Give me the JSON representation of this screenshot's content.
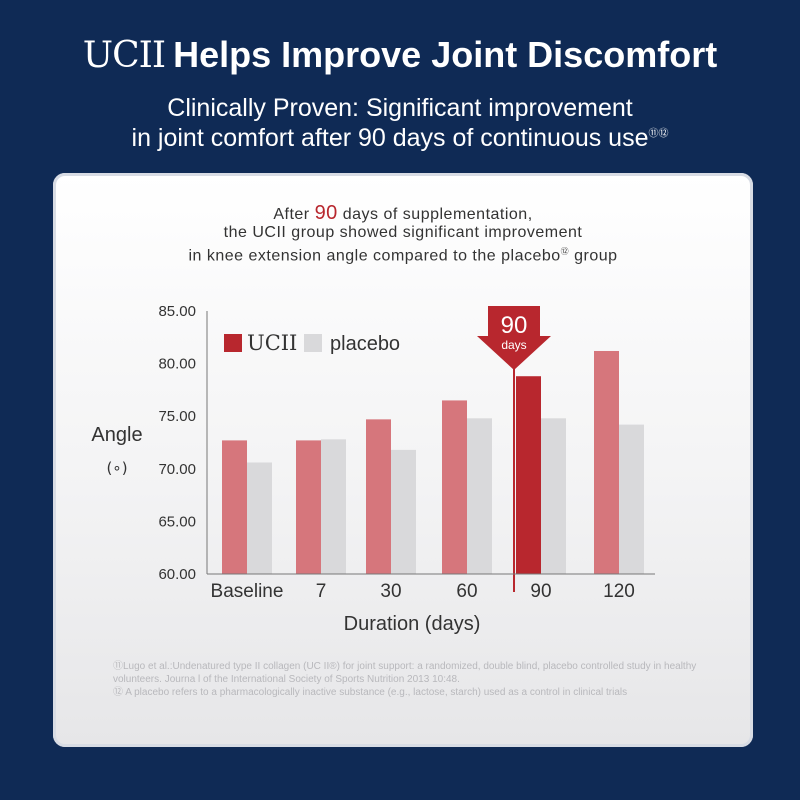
{
  "header": {
    "brand": "UCII",
    "title": "Helps Improve Joint Discomfort",
    "subtitle_line1": "Clinically Proven: Significant improvement",
    "subtitle_line2": "in joint comfort after 90 days of continuous use",
    "subtitle_refs": "⑪⑫"
  },
  "card": {
    "line1_before": "After ",
    "line1_highlight": "90",
    "line1_after": " days of supplementation,",
    "line2": "the UCII group showed significant improvement",
    "line3_before": "in knee extension angle compared to the placebo",
    "line3_ref": "⑫",
    "line3_after": " group"
  },
  "chart_data": {
    "type": "bar",
    "categories": [
      "Baseline",
      "7",
      "30",
      "60",
      "90",
      "120"
    ],
    "series": [
      {
        "name": "UCII",
        "values": [
          72.7,
          72.7,
          74.7,
          76.5,
          78.8,
          81.2
        ]
      },
      {
        "name": "placebo",
        "values": [
          70.6,
          72.8,
          71.8,
          74.8,
          74.8,
          74.2
        ]
      }
    ],
    "highlight_category": "90",
    "highlight_callout": {
      "value": "90",
      "unit": "days"
    },
    "ylabel": "Angle",
    "ylabel_unit": "(∘)",
    "xlabel": "Duration (days)",
    "ylim": [
      60,
      85
    ],
    "yticks": [
      "60.00",
      "65.00",
      "70.00",
      "75.00",
      "80.00",
      "85.00"
    ],
    "grid": false,
    "legend_position": "top-left",
    "colors": {
      "UCII": "#d6767c",
      "UCII_highlight": "#b8272e",
      "placebo": "#d9d9db"
    }
  },
  "references": [
    "⑪Lugo et al.:Undenatured type II collagen (UC II®) for joint support: a randomized, double blind, placebo controlled study in healthy volunteers. Journa l of the International Society of Sports Nutrition 2013 10:48.",
    "⑫ A placebo refers to a pharmacologically inactive substance (e.g., lactose, starch) used as a control in clinical trials"
  ],
  "colors": {
    "background": "#0f2a55",
    "accent": "#b8272e"
  }
}
